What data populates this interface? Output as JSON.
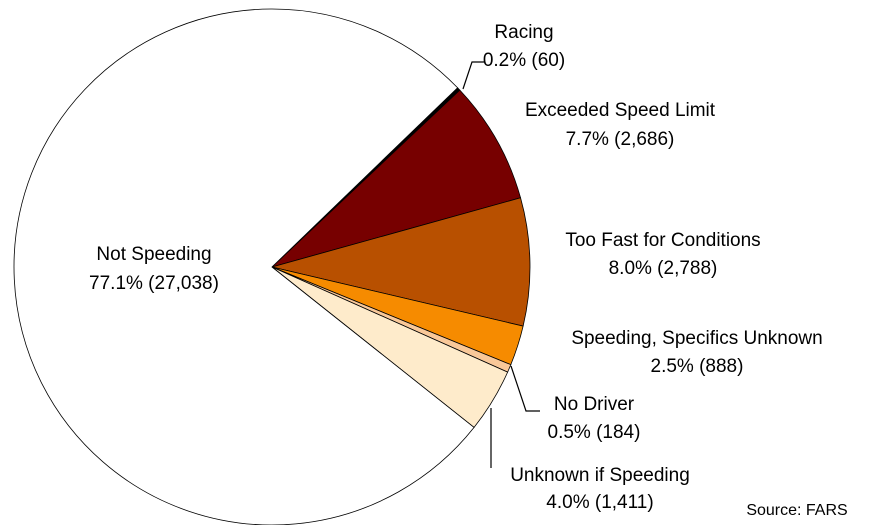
{
  "chart_data": {
    "type": "pie",
    "categories": [
      "Racing",
      "Exceeded Speed Limit",
      "Too Fast for Conditions",
      "Speeding, Specifics Unknown",
      "No Driver",
      "Unknown if Speeding",
      "Not Speeding"
    ],
    "values": [
      0.2,
      7.7,
      8.0,
      2.5,
      0.5,
      4.0,
      77.1
    ],
    "value_labels": [
      "0.2% (60)",
      "7.7% (2,686)",
      "8.0% (2,788)",
      "2.5% (888)",
      "0.5% (184)",
      "4.0% (1,411)",
      "77.1% (27,038)"
    ],
    "colors": [
      "#000000",
      "#770000",
      "#b85000",
      "#f68b00",
      "#f9c899",
      "#feebcb",
      "#ffffff"
    ],
    "source": "Source: FARS"
  }
}
